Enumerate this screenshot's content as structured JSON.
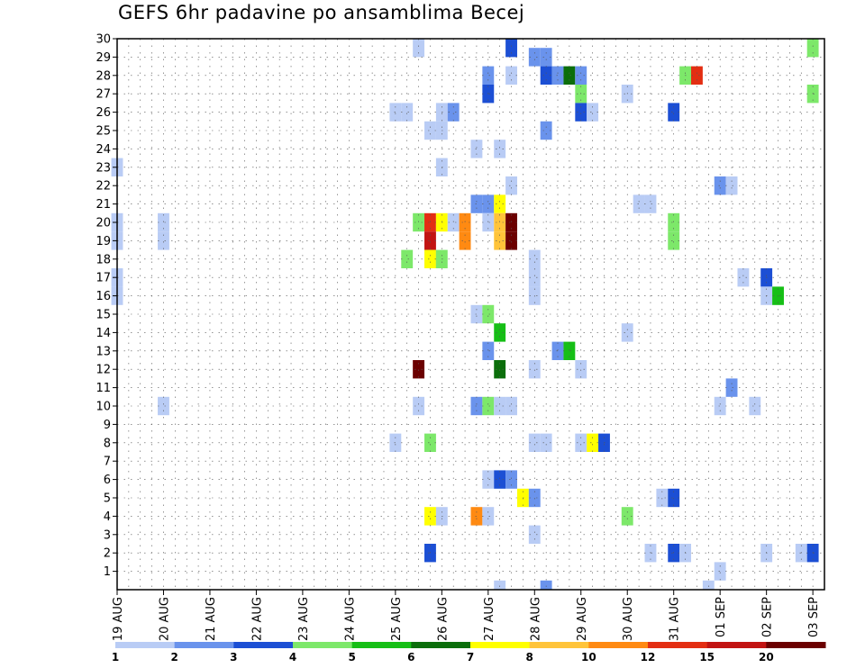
{
  "title": "GEFS 6hr padavine po ansamblima Becej",
  "chart_data": {
    "type": "heatmap",
    "title": "GEFS 6hr padavine po ansamblima Becej",
    "xlabel": "",
    "ylabel": "",
    "x_tick_labels": [
      "19 AUG",
      "20 AUG",
      "21 AUG",
      "22 AUG",
      "23 AUG",
      "24 AUG",
      "25 AUG",
      "26 AUG",
      "27 AUG",
      "28 AUG",
      "29 AUG",
      "30 AUG",
      "31 AUG",
      "01 SEP",
      "02 SEP",
      "03 SEP"
    ],
    "x_range_days": [
      0,
      15.25
    ],
    "y_tick_labels": [
      1,
      2,
      3,
      4,
      5,
      6,
      7,
      8,
      9,
      10,
      11,
      12,
      13,
      14,
      15,
      16,
      17,
      18,
      19,
      20,
      21,
      22,
      23,
      24,
      25,
      26,
      27,
      28,
      29,
      30
    ],
    "y_range": [
      0,
      30
    ],
    "grid": true,
    "colorbar": {
      "thresholds": [
        1,
        2,
        3,
        4,
        5,
        6,
        7,
        8,
        10,
        12,
        15,
        20
      ],
      "labels": [
        "1",
        "2",
        "3",
        "4",
        "5",
        "6",
        "7",
        "8",
        "10",
        "12",
        "15",
        "20"
      ],
      "colors": [
        "#b9ccf5",
        "#6a93ec",
        "#1c4fd4",
        "#7de86a",
        "#16bf16",
        "#0b6e0b",
        "#ffff00",
        "#ffc43a",
        "#ff8a12",
        "#e32e12",
        "#c21412",
        "#6b0000"
      ]
    },
    "cells": [
      {
        "member": 30,
        "t": [
          6.5
        ],
        "level": 0
      },
      {
        "member": 30,
        "t": [
          8.5
        ],
        "level": 2
      },
      {
        "member": 30,
        "t": [
          15
        ],
        "level": 3
      },
      {
        "member": 29,
        "t": [
          9,
          9.25
        ],
        "level": 1
      },
      {
        "member": 28,
        "t": [
          8
        ],
        "level": 1
      },
      {
        "member": 28,
        "t": [
          8.5
        ],
        "level": 0
      },
      {
        "member": 28,
        "t": [
          9.25
        ],
        "level": 2
      },
      {
        "member": 28,
        "t": [
          9.5
        ],
        "level": 1
      },
      {
        "member": 28,
        "t": [
          9.75
        ],
        "level": 5
      },
      {
        "member": 28,
        "t": [
          10
        ],
        "level": 1
      },
      {
        "member": 28,
        "t": [
          12.25
        ],
        "level": 3
      },
      {
        "member": 28,
        "t": [
          12.5
        ],
        "level": 9
      },
      {
        "member": 27,
        "t": [
          8
        ],
        "level": 2
      },
      {
        "member": 27,
        "t": [
          10
        ],
        "level": 3
      },
      {
        "member": 27,
        "t": [
          11
        ],
        "level": 0
      },
      {
        "member": 27,
        "t": [
          15
        ],
        "level": 3
      },
      {
        "member": 26,
        "t": [
          6,
          6.25
        ],
        "level": 0
      },
      {
        "member": 26,
        "t": [
          7
        ],
        "level": 0
      },
      {
        "member": 26,
        "t": [
          7.25
        ],
        "level": 1
      },
      {
        "member": 26,
        "t": [
          10
        ],
        "level": 2
      },
      {
        "member": 26,
        "t": [
          10.25
        ],
        "level": 0
      },
      {
        "member": 26,
        "t": [
          12
        ],
        "level": 2
      },
      {
        "member": 25,
        "t": [
          6.75,
          7
        ],
        "level": 0
      },
      {
        "member": 25,
        "t": [
          9.25
        ],
        "level": 1
      },
      {
        "member": 24,
        "t": [
          7.75
        ],
        "level": 0
      },
      {
        "member": 24,
        "t": [
          8.25
        ],
        "level": 0
      },
      {
        "member": 23,
        "t": [
          0
        ],
        "level": 0
      },
      {
        "member": 23,
        "t": [
          7
        ],
        "level": 0
      },
      {
        "member": 22,
        "t": [
          8.5
        ],
        "level": 0
      },
      {
        "member": 22,
        "t": [
          13
        ],
        "level": 1
      },
      {
        "member": 22,
        "t": [
          13.25
        ],
        "level": 0
      },
      {
        "member": 21,
        "t": [
          7.75,
          8
        ],
        "level": 1
      },
      {
        "member": 21,
        "t": [
          8.25
        ],
        "level": 6
      },
      {
        "member": 21,
        "t": [
          11.25,
          11.5
        ],
        "level": 0
      },
      {
        "member": 20,
        "t": [
          0
        ],
        "level": 0
      },
      {
        "member": 20,
        "t": [
          1
        ],
        "level": 0
      },
      {
        "member": 20,
        "t": [
          6.5
        ],
        "level": 3
      },
      {
        "member": 20,
        "t": [
          6.75
        ],
        "level": 9
      },
      {
        "member": 20,
        "t": [
          7
        ],
        "level": 6
      },
      {
        "member": 20,
        "t": [
          7.25
        ],
        "level": 0
      },
      {
        "member": 20,
        "t": [
          7.5
        ],
        "level": 8
      },
      {
        "member": 20,
        "t": [
          8
        ],
        "level": 0
      },
      {
        "member": 20,
        "t": [
          8.25
        ],
        "level": 7
      },
      {
        "member": 20,
        "t": [
          8.5
        ],
        "level": 11
      },
      {
        "member": 20,
        "t": [
          12
        ],
        "level": 3
      },
      {
        "member": 19,
        "t": [
          0
        ],
        "level": 0
      },
      {
        "member": 19,
        "t": [
          1
        ],
        "level": 0
      },
      {
        "member": 19,
        "t": [
          6.75
        ],
        "level": 10
      },
      {
        "member": 19,
        "t": [
          7.5
        ],
        "level": 8
      },
      {
        "member": 19,
        "t": [
          8.25
        ],
        "level": 7
      },
      {
        "member": 19,
        "t": [
          8.5
        ],
        "level": 11
      },
      {
        "member": 19,
        "t": [
          12
        ],
        "level": 3
      },
      {
        "member": 18,
        "t": [
          6.25
        ],
        "level": 3
      },
      {
        "member": 18,
        "t": [
          6.75
        ],
        "level": 1
      },
      {
        "member": 18,
        "t": [
          6.75
        ],
        "level": 6
      },
      {
        "member": 18,
        "t": [
          7
        ],
        "level": 3
      },
      {
        "member": 18,
        "t": [
          9
        ],
        "level": 0
      },
      {
        "member": 17,
        "t": [
          0
        ],
        "level": 0
      },
      {
        "member": 17,
        "t": [
          9
        ],
        "level": 0
      },
      {
        "member": 17,
        "t": [
          13.5
        ],
        "level": 0
      },
      {
        "member": 17,
        "t": [
          14
        ],
        "level": 2
      },
      {
        "member": 16,
        "t": [
          0
        ],
        "level": 0
      },
      {
        "member": 16,
        "t": [
          9
        ],
        "level": 0
      },
      {
        "member": 16,
        "t": [
          14
        ],
        "level": 0
      },
      {
        "member": 16,
        "t": [
          14.25
        ],
        "level": 4
      },
      {
        "member": 15,
        "t": [
          7.75
        ],
        "level": 0
      },
      {
        "member": 15,
        "t": [
          8
        ],
        "level": 3
      },
      {
        "member": 14,
        "t": [
          8.25
        ],
        "level": 4
      },
      {
        "member": 14,
        "t": [
          11
        ],
        "level": 0
      },
      {
        "member": 13,
        "t": [
          8
        ],
        "level": 1
      },
      {
        "member": 13,
        "t": [
          9.5
        ],
        "level": 1
      },
      {
        "member": 13,
        "t": [
          9.75
        ],
        "level": 4
      },
      {
        "member": 12,
        "t": [
          6.5
        ],
        "level": 11
      },
      {
        "member": 12,
        "t": [
          8.25
        ],
        "level": 5
      },
      {
        "member": 12,
        "t": [
          9
        ],
        "level": 0
      },
      {
        "member": 12,
        "t": [
          10
        ],
        "level": 0
      },
      {
        "member": 11,
        "t": [
          13.25
        ],
        "level": 1
      },
      {
        "member": 10,
        "t": [
          1
        ],
        "level": 0
      },
      {
        "member": 10,
        "t": [
          6.5
        ],
        "level": 0
      },
      {
        "member": 10,
        "t": [
          7.75
        ],
        "level": 1
      },
      {
        "member": 10,
        "t": [
          8
        ],
        "level": 3
      },
      {
        "member": 10,
        "t": [
          8.25,
          8.5
        ],
        "level": 0
      },
      {
        "member": 10,
        "t": [
          13
        ],
        "level": 0
      },
      {
        "member": 10,
        "t": [
          13.75
        ],
        "level": 0
      },
      {
        "member": 8,
        "t": [
          6
        ],
        "level": 0
      },
      {
        "member": 8,
        "t": [
          6.75
        ],
        "level": 3
      },
      {
        "member": 8,
        "t": [
          9,
          9.25
        ],
        "level": 0
      },
      {
        "member": 8,
        "t": [
          10
        ],
        "level": 0
      },
      {
        "member": 8,
        "t": [
          10.25
        ],
        "level": 6
      },
      {
        "member": 8,
        "t": [
          10.5
        ],
        "level": 2
      },
      {
        "member": 6,
        "t": [
          8
        ],
        "level": 0
      },
      {
        "member": 6,
        "t": [
          8.25
        ],
        "level": 2
      },
      {
        "member": 6,
        "t": [
          8.5
        ],
        "level": 1
      },
      {
        "member": 5,
        "t": [
          8.75
        ],
        "level": 6
      },
      {
        "member": 5,
        "t": [
          9
        ],
        "level": 1
      },
      {
        "member": 5,
        "t": [
          11.75
        ],
        "level": 0
      },
      {
        "member": 5,
        "t": [
          12
        ],
        "level": 2
      },
      {
        "member": 4,
        "t": [
          6.75
        ],
        "level": 6
      },
      {
        "member": 4,
        "t": [
          7
        ],
        "level": 0
      },
      {
        "member": 4,
        "t": [
          7.75
        ],
        "level": 8
      },
      {
        "member": 4,
        "t": [
          8
        ],
        "level": 0
      },
      {
        "member": 4,
        "t": [
          11
        ],
        "level": 3
      },
      {
        "member": 3,
        "t": [
          9
        ],
        "level": 0
      },
      {
        "member": 2,
        "t": [
          6.75
        ],
        "level": 2
      },
      {
        "member": 2,
        "t": [
          11.5
        ],
        "level": 0
      },
      {
        "member": 2,
        "t": [
          12
        ],
        "level": 2
      },
      {
        "member": 2,
        "t": [
          12.25
        ],
        "level": 0
      },
      {
        "member": 2,
        "t": [
          14
        ],
        "level": 0
      },
      {
        "member": 2,
        "t": [
          14.75
        ],
        "level": 0
      },
      {
        "member": 2,
        "t": [
          15
        ],
        "level": 2
      },
      {
        "member": 1,
        "t": [
          13
        ],
        "level": 0
      },
      {
        "member": 0,
        "t": [
          8.25
        ],
        "level": 0
      },
      {
        "member": 0,
        "t": [
          9.25
        ],
        "level": 1
      },
      {
        "member": 0,
        "t": [
          12.75
        ],
        "level": 0
      }
    ]
  }
}
